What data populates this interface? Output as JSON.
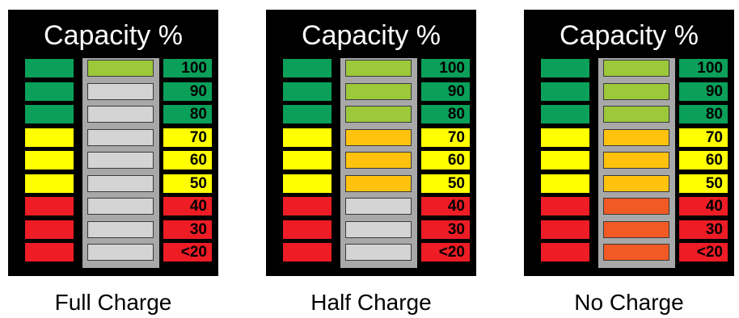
{
  "panels": [
    {
      "title": "Capacity %",
      "caption": "Full Charge",
      "rows": [
        {
          "label": "100",
          "band": "green",
          "cell": "lime"
        },
        {
          "label": "90",
          "band": "green",
          "cell": "gray"
        },
        {
          "label": "80",
          "band": "green",
          "cell": "gray"
        },
        {
          "label": "70",
          "band": "yellow",
          "cell": "gray"
        },
        {
          "label": "60",
          "band": "yellow",
          "cell": "gray"
        },
        {
          "label": "50",
          "band": "yellow",
          "cell": "gray"
        },
        {
          "label": "40",
          "band": "red",
          "cell": "gray"
        },
        {
          "label": "30",
          "band": "red",
          "cell": "gray"
        },
        {
          "label": "<20",
          "band": "red",
          "cell": "gray"
        }
      ]
    },
    {
      "title": "Capacity %",
      "caption": "Half Charge",
      "rows": [
        {
          "label": "100",
          "band": "green",
          "cell": "lime"
        },
        {
          "label": "90",
          "band": "green",
          "cell": "lime"
        },
        {
          "label": "80",
          "band": "green",
          "cell": "lime"
        },
        {
          "label": "70",
          "band": "yellow",
          "cell": "amber"
        },
        {
          "label": "60",
          "band": "yellow",
          "cell": "amber"
        },
        {
          "label": "50",
          "band": "yellow",
          "cell": "amber"
        },
        {
          "label": "40",
          "band": "red",
          "cell": "gray"
        },
        {
          "label": "30",
          "band": "red",
          "cell": "gray"
        },
        {
          "label": "<20",
          "band": "red",
          "cell": "gray"
        }
      ]
    },
    {
      "title": "Capacity %",
      "caption": "No Charge",
      "rows": [
        {
          "label": "100",
          "band": "green",
          "cell": "lime"
        },
        {
          "label": "90",
          "band": "green",
          "cell": "lime"
        },
        {
          "label": "80",
          "band": "green",
          "cell": "lime"
        },
        {
          "label": "70",
          "band": "yellow",
          "cell": "amber"
        },
        {
          "label": "60",
          "band": "yellow",
          "cell": "amber"
        },
        {
          "label": "50",
          "band": "yellow",
          "cell": "amber"
        },
        {
          "label": "40",
          "band": "red",
          "cell": "orange"
        },
        {
          "label": "30",
          "band": "red",
          "cell": "orange"
        },
        {
          "label": "<20",
          "band": "red",
          "cell": "orange"
        }
      ]
    }
  ],
  "colors": {
    "panel": "#000000",
    "stripe": "#a8a8a8",
    "green": "#0aa05a",
    "yellow": "#ffff00",
    "red": "#ee1c25",
    "lime": "#9cc83a",
    "gray": "#d4d4d4",
    "amber": "#ffc20e",
    "orange": "#f15a24"
  }
}
